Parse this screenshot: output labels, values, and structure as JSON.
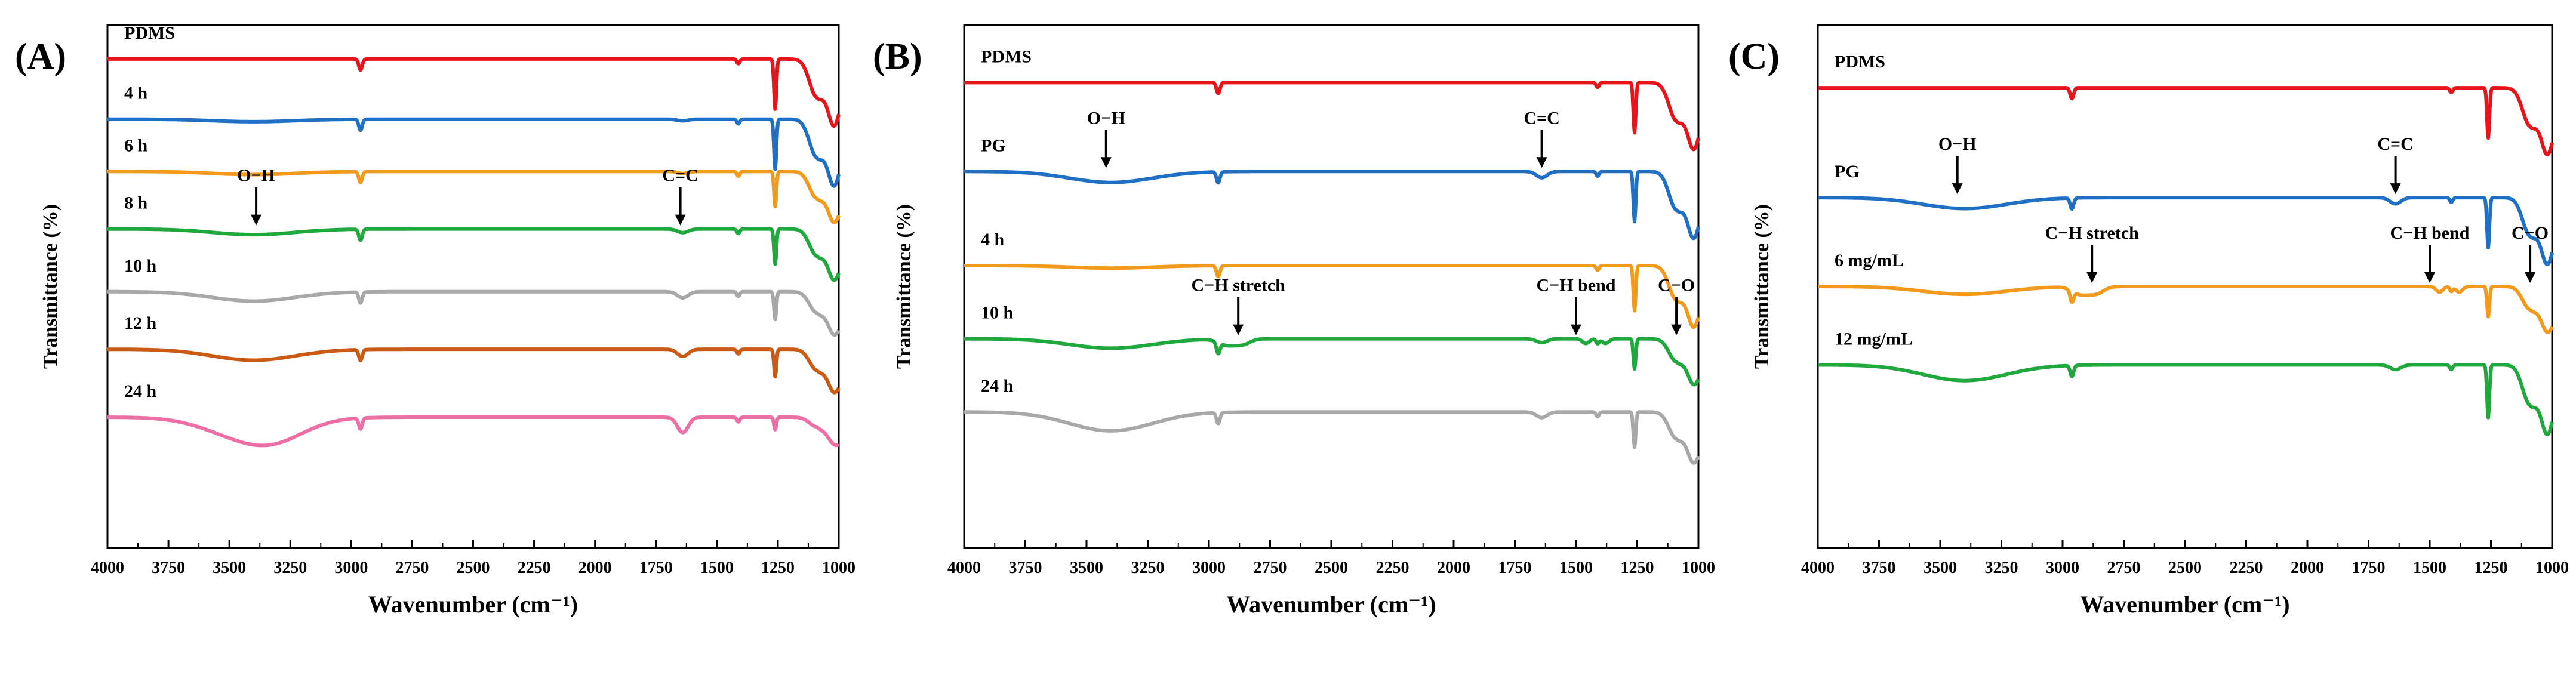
{
  "chart_data": [
    {
      "type": "line",
      "panel_label": "(A)",
      "xlabel": "Wavenumber (cm⁻¹)",
      "ylabel": "Transmittance (%)",
      "xlim": [
        4000,
        1000
      ],
      "xticks": [
        "4000",
        "3750",
        "3500",
        "3250",
        "3000",
        "2750",
        "2500",
        "2250",
        "2000",
        "1750",
        "1500",
        "1250",
        "1000"
      ],
      "series": [
        {
          "name": "PDMS",
          "color": "#e8141b",
          "baseline": 0.935
        },
        {
          "name": "4 h",
          "color": "#1f6fc5",
          "baseline": 0.82
        },
        {
          "name": "6 h",
          "color": "#f39a1c",
          "baseline": 0.72
        },
        {
          "name": "8 h",
          "color": "#1fa83c",
          "baseline": 0.61
        },
        {
          "name": "10 h",
          "color": "#a8a8a8",
          "baseline": 0.49
        },
        {
          "name": "12 h",
          "color": "#cc5a12",
          "baseline": 0.38
        },
        {
          "name": "24 h",
          "color": "#ee6fa6",
          "baseline": 0.25
        }
      ],
      "annotations": [
        {
          "text": "O−H",
          "x": 3390,
          "series": "8 h"
        },
        {
          "text": "C=C",
          "x": 1650,
          "series": "8 h"
        }
      ]
    },
    {
      "type": "line",
      "panel_label": "(B)",
      "xlabel": "Wavenumber (cm⁻¹)",
      "ylabel": "Transmittance (%)",
      "xlim": [
        4000,
        1000
      ],
      "xticks": [
        "4000",
        "3750",
        "3500",
        "3250",
        "3000",
        "2750",
        "2500",
        "2250",
        "2000",
        "1750",
        "1500",
        "1250",
        "1000"
      ],
      "series": [
        {
          "name": "PDMS",
          "color": "#e8141b",
          "baseline": 0.89
        },
        {
          "name": "PG",
          "color": "#1f6fc5",
          "baseline": 0.72
        },
        {
          "name": "4 h",
          "color": "#f39a1c",
          "baseline": 0.54
        },
        {
          "name": "10 h",
          "color": "#1fa83c",
          "baseline": 0.4
        },
        {
          "name": "24 h",
          "color": "#a8a8a8",
          "baseline": 0.26
        }
      ],
      "annotations": [
        {
          "text": "O−H",
          "x": 3420,
          "series": "PG"
        },
        {
          "text": "C=C",
          "x": 1640,
          "series": "PG"
        },
        {
          "text": "C−H stretch",
          "x": 2880,
          "series": "10 h"
        },
        {
          "text": "C−H bend",
          "x": 1500,
          "series": "10 h"
        },
        {
          "text": "C−O",
          "x": 1090,
          "series": "10 h"
        }
      ]
    },
    {
      "type": "line",
      "panel_label": "(C)",
      "xlabel": "Wavenumber (cm⁻¹)",
      "ylabel": "Transmittance (%)",
      "xlim": [
        4000,
        1000
      ],
      "xticks": [
        "4000",
        "3750",
        "3500",
        "3250",
        "3000",
        "2750",
        "2500",
        "2250",
        "2000",
        "1750",
        "1500",
        "1250",
        "1000"
      ],
      "series": [
        {
          "name": "PDMS",
          "color": "#e8141b",
          "baseline": 0.88
        },
        {
          "name": "PG",
          "color": "#1f6fc5",
          "baseline": 0.67
        },
        {
          "name": "6 mg/mL",
          "color": "#f39a1c",
          "baseline": 0.5
        },
        {
          "name": "12 mg/mL",
          "color": "#1fa83c",
          "baseline": 0.35
        }
      ],
      "annotations": [
        {
          "text": "O−H",
          "x": 3430,
          "series": "PG"
        },
        {
          "text": "C=C",
          "x": 1640,
          "series": "PG"
        },
        {
          "text": "C−H stretch",
          "x": 2880,
          "series": "6 mg/mL"
        },
        {
          "text": "C−H bend",
          "x": 1500,
          "series": "6 mg/mL"
        },
        {
          "text": "C−O",
          "x": 1090,
          "series": "6 mg/mL"
        }
      ]
    }
  ]
}
